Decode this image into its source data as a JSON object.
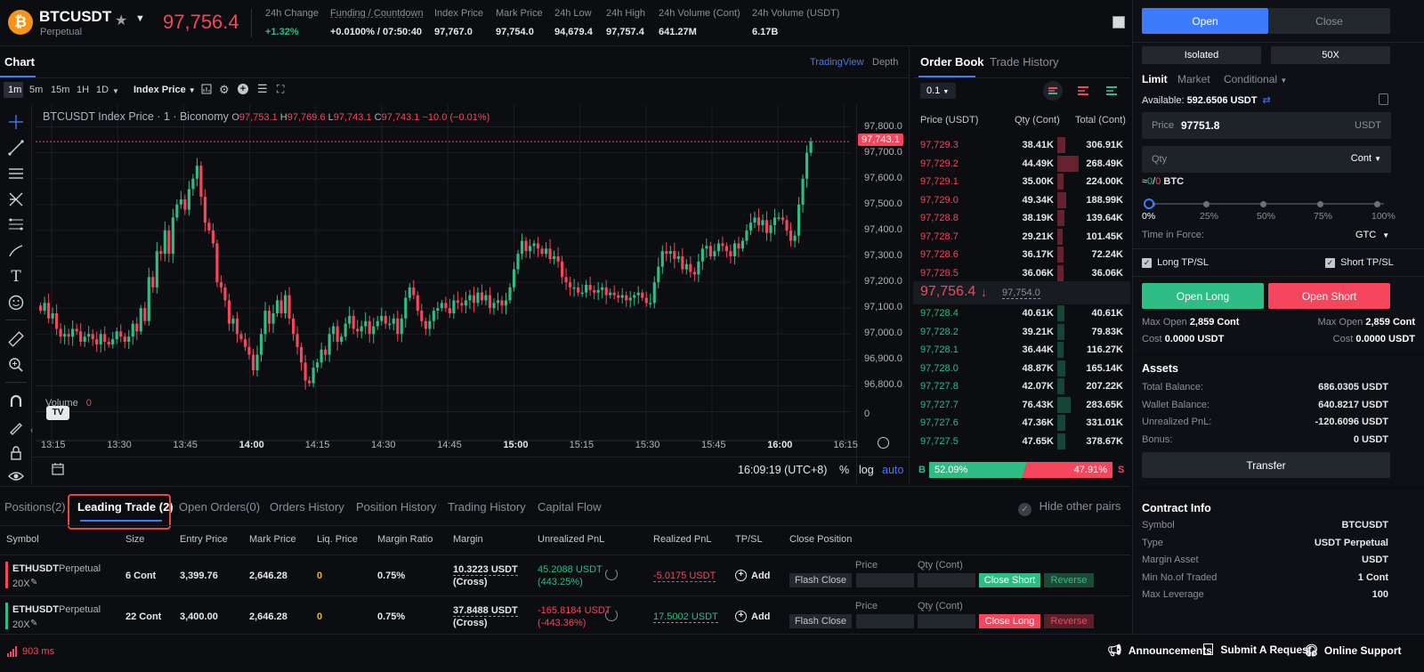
{
  "header": {
    "symbol": "BTCUSDT",
    "contract_kind": "Perpetual",
    "last_price": "97,756.4",
    "stats": [
      {
        "label": "24h Change",
        "value": "+1.32%"
      },
      {
        "label": "Funding / Countdown",
        "value": "+0.0100% / 07:50:40"
      },
      {
        "label": "Index Price",
        "value": "97,767.0"
      },
      {
        "label": "Mark Price",
        "value": "97,754.0"
      },
      {
        "label": "24h Low",
        "value": "94,679.4"
      },
      {
        "label": "24h High",
        "value": "97,757.4"
      },
      {
        "label": "24h Volume (Cont)",
        "value": "641.27M"
      },
      {
        "label": "24h Volume (USDT)",
        "value": "6.17B"
      }
    ]
  },
  "chart": {
    "tab_label": "Chart",
    "view_tradingview": "TradingView",
    "view_depth": "Depth",
    "intervals": [
      "1m",
      "5m",
      "15m",
      "1H",
      "1D"
    ],
    "price_source": "Index Price",
    "legend_title": "BTCUSDT Index Price · 1 · Biconomy",
    "ohlc": {
      "o_label": "O",
      "o": "97,753.1",
      "h_label": "H",
      "h": "97,769.6",
      "l_label": "L",
      "l": "97,743.1",
      "c_label": "C",
      "c": "97,743.1",
      "chg": "−10.0 (−0.01%)"
    },
    "last_price_tag": "97,743.1",
    "volume_label": "Volume",
    "volume_value": "0",
    "volume_axis_label": "0",
    "price_ticks": [
      "97,800.0",
      "97,700.0",
      "97,600.0",
      "97,500.0",
      "97,400.0",
      "97,300.0",
      "97,200.0",
      "97,100.0",
      "97,000.0",
      "96,900.0",
      "96,800.0"
    ],
    "time_ticks": [
      "13:15",
      "13:30",
      "13:45",
      "14:00",
      "14:15",
      "14:30",
      "14:45",
      "15:00",
      "15:15",
      "15:30",
      "15:45",
      "16:00",
      "16:15"
    ],
    "clock": "16:09:19 (UTC+8)",
    "scale_percent": "%",
    "scale_log": "log",
    "scale_auto": "auto"
  },
  "chart_data": {
    "type": "candlestick",
    "title": "BTCUSDT Index Price · 1 · Biconomy",
    "xlabel": "",
    "ylabel": "",
    "ylim": [
      96750,
      97850
    ],
    "x_range": [
      "13:12",
      "16:09"
    ],
    "series": [
      {
        "values": [
          97090,
          97120,
          97060,
          97080,
          97020,
          96990,
          97000,
          96990,
          97020,
          97010,
          96970,
          96990,
          97000,
          96980,
          96960,
          97000,
          96970,
          96960,
          96980,
          97010,
          96990,
          96970,
          96990,
          97040,
          97010,
          97100,
          97050,
          97220,
          97180,
          97320,
          97310,
          97400,
          97310,
          97450,
          97500,
          97520,
          97480,
          97560,
          97600,
          97650,
          97530,
          97430,
          97400,
          97350,
          97200,
          97180,
          97130,
          97040,
          97060,
          97000,
          96980,
          96950,
          96920,
          96860,
          96920,
          97000,
          97090,
          97040,
          97080,
          97130,
          97080,
          97150,
          97060,
          97000,
          96950,
          96890,
          96820,
          96810,
          96870,
          96890,
          96940,
          96920,
          97000,
          97030,
          96970,
          96990,
          97040,
          97070,
          97020,
          97010,
          97030,
          97050,
          97000,
          97030,
          97050,
          97070,
          97040,
          97040,
          97060,
          97000,
          97060,
          97140,
          97180,
          97150,
          97090,
          97050,
          97020,
          97050,
          97090,
          97100,
          97120,
          97100,
          97080,
          97130,
          97120,
          97110,
          97130,
          97150,
          97120,
          97160,
          97130,
          97150,
          97100,
          97120,
          97130,
          97110,
          97130,
          97180,
          97250,
          97310,
          97360,
          97320,
          97340,
          97350,
          97330,
          97310,
          97330,
          97290,
          97300,
          97280,
          97220,
          97200,
          97180,
          97180,
          97160,
          97160,
          97190,
          97170,
          97160,
          97170,
          97180,
          97150,
          97160,
          97150,
          97140,
          97150,
          97130,
          97140,
          97150,
          97160,
          97140,
          97120,
          97120,
          97200,
          97260,
          97320,
          97310,
          97320,
          97290,
          97300,
          97250,
          97270,
          97240,
          97230,
          97280,
          97330,
          97340,
          97300,
          97320,
          97350,
          97340,
          97320,
          97300,
          97350,
          97330,
          97360,
          97400,
          97430,
          97450,
          97420,
          97440,
          97390,
          97420,
          97450,
          97450,
          97440,
          97400,
          97360,
          97380,
          97500,
          97600,
          97700,
          97743
        ]
      }
    ]
  },
  "orderbook": {
    "tab_book": "Order Book",
    "tab_trades": "Trade History",
    "precision": "0.1",
    "headers": {
      "price": "Price (USDT)",
      "qty": "Qty (Cont)",
      "total": "Total (Cont)"
    },
    "asks": [
      {
        "price": "97,729.3",
        "qty": "38.41K",
        "total": "306.91K",
        "depth": 0.36
      },
      {
        "price": "97,729.2",
        "qty": "44.49K",
        "total": "268.49K",
        "depth": 0.94
      },
      {
        "price": "97,729.1",
        "qty": "35.00K",
        "total": "224.00K",
        "depth": 0.28
      },
      {
        "price": "97,729.0",
        "qty": "49.34K",
        "total": "188.99K",
        "depth": 0.38
      },
      {
        "price": "97,728.8",
        "qty": "38.19K",
        "total": "139.64K",
        "depth": 0.3
      },
      {
        "price": "97,728.7",
        "qty": "29.21K",
        "total": "101.45K",
        "depth": 0.24
      },
      {
        "price": "97,728.6",
        "qty": "36.17K",
        "total": "72.24K",
        "depth": 0.28
      },
      {
        "price": "97,728.5",
        "qty": "36.06K",
        "total": "36.06K",
        "depth": 0.28
      }
    ],
    "mid_price": "97,756.4",
    "mid_arrow": "↓",
    "mid_mark": "97,754.0",
    "bids": [
      {
        "price": "97,728.4",
        "qty": "40.61K",
        "total": "40.61K",
        "depth": 0.3
      },
      {
        "price": "97,728.2",
        "qty": "39.21K",
        "total": "79.83K",
        "depth": 0.3
      },
      {
        "price": "97,728.1",
        "qty": "36.44K",
        "total": "116.27K",
        "depth": 0.28
      },
      {
        "price": "97,728.0",
        "qty": "48.87K",
        "total": "165.14K",
        "depth": 0.36
      },
      {
        "price": "97,727.8",
        "qty": "42.07K",
        "total": "207.22K",
        "depth": 0.32
      },
      {
        "price": "97,727.7",
        "qty": "76.43K",
        "total": "283.65K",
        "depth": 0.58
      },
      {
        "price": "97,727.6",
        "qty": "47.36K",
        "total": "331.01K",
        "depth": 0.36
      },
      {
        "price": "97,727.5",
        "qty": "47.65K",
        "total": "378.67K",
        "depth": 0.36
      }
    ],
    "buy_letter": "B",
    "sell_letter": "S",
    "buy_pct": "52.09%",
    "sell_pct": "47.91%",
    "buy_ratio": 0.5209
  },
  "trade": {
    "open_tab": "Open",
    "close_tab": "Close",
    "margin_mode": "Isolated",
    "leverage": "50X",
    "order_types": [
      "Limit",
      "Market",
      "Conditional"
    ],
    "available_label": "Available:",
    "available_value": "592.6506 USDT",
    "price_label": "Price",
    "price_value": "97751.8",
    "price_unit": "USDT",
    "qty_placeholder": "Qty",
    "qty_unit": "Cont",
    "approx_prefix": "≈",
    "approx_green": "0",
    "approx_sep": "/",
    "approx_red": "0",
    "approx_unit": " BTC",
    "slider_marks": [
      "0%",
      "25%",
      "50%",
      "75%",
      "100%"
    ],
    "slider_level": 0,
    "tif_label": "Time in Force:",
    "tif_value": "GTC",
    "long_tpsl": "Long TP/SL",
    "short_tpsl": "Short TP/SL",
    "open_long": "Open Long",
    "open_short": "Open Short",
    "max_open_label": "Max Open",
    "max_open_long": "2,859 Cont",
    "max_open_short": "2,859 Cont",
    "cost_label": "Cost",
    "cost_long": "0.0000 USDT",
    "cost_short": "0.0000 USDT",
    "assets_title": "Assets",
    "assets": [
      {
        "label": "Total Balance:",
        "value": "686.0305 USDT"
      },
      {
        "label": "Wallet Balance:",
        "value": "640.8217 USDT"
      },
      {
        "label": "Unrealized PnL:",
        "value": "-120.6096 USDT"
      },
      {
        "label": "Bonus:",
        "value": "0 USDT"
      }
    ],
    "transfer": "Transfer",
    "contract_title": "Contract Info",
    "contract": [
      {
        "label": "Symbol",
        "value": "BTCUSDT"
      },
      {
        "label": "Type",
        "value": "USDT Perpetual"
      },
      {
        "label": "Margin Asset",
        "value": "USDT"
      },
      {
        "label": "Min No.of Traded",
        "value": "1 Cont"
      },
      {
        "label": "Max Leverage",
        "value": "100"
      }
    ]
  },
  "positions": {
    "tabs": [
      "Positions(2)",
      "Leading Trade (2)",
      "Open Orders(0)",
      "Orders History",
      "Position History",
      "Trading History",
      "Capital Flow"
    ],
    "hide_other_pairs": "Hide other pairs",
    "columns": [
      "Symbol",
      "Size",
      "Entry Price",
      "Mark Price",
      "Liq. Price",
      "Margin Ratio",
      "Margin",
      "Unrealized PnL",
      "Realized PnL",
      "TP/SL",
      "Close Position"
    ],
    "price_field_label": "Price",
    "qty_field_label": "Qty (Cont)",
    "flash_close": "Flash Close",
    "reverse": "Reverse",
    "add": "Add",
    "rows": [
      {
        "symbol": "ETHUSDT",
        "kind": "Perpetual",
        "lev": "20X",
        "size": "6 Cont",
        "entry": "3,399.76",
        "mark": "2,646.28",
        "liq": "0",
        "ratio": "0.75%",
        "margin": "10.3223 USDT",
        "margin_mode": "(Cross)",
        "upnl": "45.2088 USDT",
        "upnl_pct": "(443.25%)",
        "rpnl": "-5.0175 USDT",
        "close_action": "Close Short",
        "side": "short"
      },
      {
        "symbol": "ETHUSDT",
        "kind": "Perpetual",
        "lev": "20X",
        "size": "22 Cont",
        "entry": "3,400.00",
        "mark": "2,646.28",
        "liq": "0",
        "ratio": "0.75%",
        "margin": "37.8488 USDT",
        "margin_mode": "(Cross)",
        "upnl": "-165.8184 USDT",
        "upnl_pct": "(-443.36%)",
        "rpnl": "17.5002 USDT",
        "close_action": "Close Long",
        "side": "long"
      }
    ]
  },
  "status": {
    "latency": "903 ms",
    "announcements": "Announcements",
    "submit_request": "Submit A Request",
    "online_support": "Online Support"
  },
  "colors": {
    "up": "#2ebd85",
    "down": "#f6465d",
    "accent": "#3d7bfd",
    "highlight_box": "#e5483b"
  }
}
